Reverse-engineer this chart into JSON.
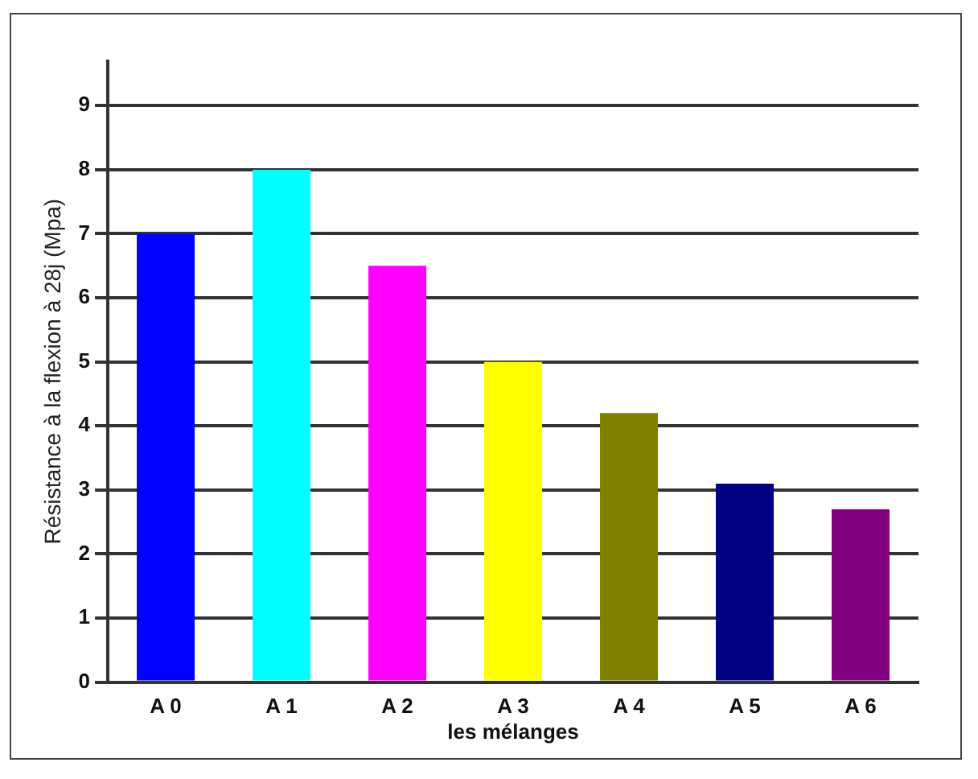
{
  "chart_data": {
    "type": "bar",
    "xlabel": "les mélanges",
    "ylabel": "Résistance à la flexion à 28j (Mpa)",
    "categories": [
      "A 0",
      "A 1",
      "A 2",
      "A 3",
      "A 4",
      "A 5",
      "A 6"
    ],
    "values": [
      7,
      8,
      6.5,
      5,
      4.2,
      3.1,
      2.7
    ],
    "colors": [
      "#0000ff",
      "#00ffff",
      "#ff00ff",
      "#ffff00",
      "#808000",
      "#000080",
      "#800080"
    ],
    "ylim": [
      0,
      9.7
    ],
    "yticks": [
      0,
      1,
      2,
      3,
      4,
      5,
      6,
      7,
      8,
      9
    ],
    "grid": "y"
  }
}
